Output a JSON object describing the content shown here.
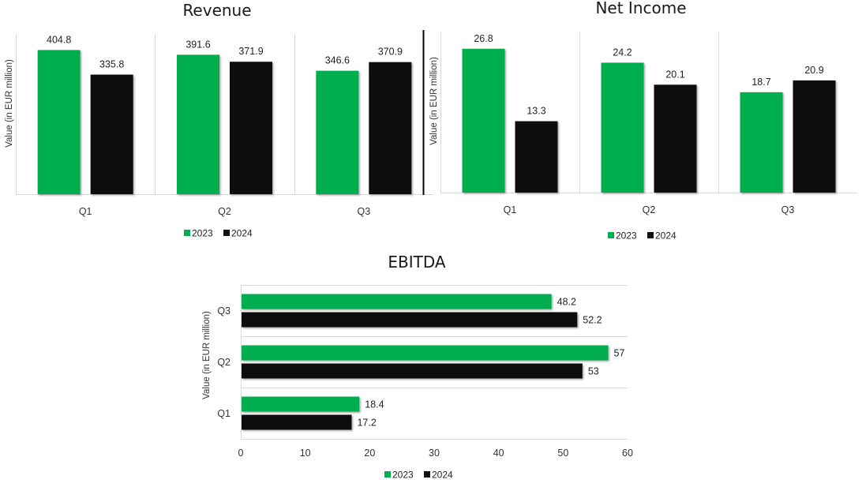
{
  "chart_data": [
    {
      "id": "revenue",
      "type": "bar",
      "orientation": "vertical",
      "title": "Revenue",
      "xlabel": "",
      "ylabel": "Value (in EUR million)",
      "ylim": [
        0,
        450
      ],
      "grid": true,
      "categories": [
        "Q1",
        "Q2",
        "Q3"
      ],
      "series": [
        {
          "name": "2023",
          "color": "#00ad4f",
          "values": [
            404.8,
            391.6,
            346.6
          ],
          "labels": [
            "404.8",
            "391.6",
            "346.6"
          ]
        },
        {
          "name": "2024",
          "color": "#111111",
          "values": [
            335.8,
            371.9,
            370.9
          ],
          "labels": [
            "335.8",
            "371.9",
            "370.9"
          ]
        }
      ],
      "legend": "bottom"
    },
    {
      "id": "net-income",
      "type": "bar",
      "orientation": "vertical",
      "title": "Net Income",
      "xlabel": "",
      "ylabel": "Value (in EUR million)",
      "ylim": [
        0,
        30
      ],
      "grid": true,
      "categories": [
        "Q1",
        "Q2",
        "Q3"
      ],
      "series": [
        {
          "name": "2023",
          "color": "#00ad4f",
          "values": [
            26.8,
            24.2,
            18.7
          ],
          "labels": [
            "26.8",
            "24.2",
            "18.7"
          ]
        },
        {
          "name": "2024",
          "color": "#111111",
          "values": [
            13.3,
            20.1,
            20.9
          ],
          "labels": [
            "13.3",
            "20.1",
            "20.9"
          ]
        }
      ],
      "legend": "bottom"
    },
    {
      "id": "ebitda",
      "type": "bar",
      "orientation": "horizontal",
      "title": "EBITDA",
      "xlabel": "",
      "ylabel": "Value (in EUR million)",
      "xlim": [
        0,
        60
      ],
      "xticks": [
        "0",
        "10",
        "20",
        "30",
        "40",
        "50",
        "60"
      ],
      "grid": true,
      "categories": [
        "Q1",
        "Q2",
        "Q3"
      ],
      "series": [
        {
          "name": "2023",
          "color": "#00ad4f",
          "values": [
            18.4,
            57,
            48.2
          ],
          "labels": [
            "18.4",
            "57",
            "48.2"
          ]
        },
        {
          "name": "2024",
          "color": "#111111",
          "values": [
            17.2,
            53,
            52.2
          ],
          "labels": [
            "17.2",
            "53",
            "52.2"
          ]
        }
      ],
      "legend": "bottom"
    }
  ]
}
